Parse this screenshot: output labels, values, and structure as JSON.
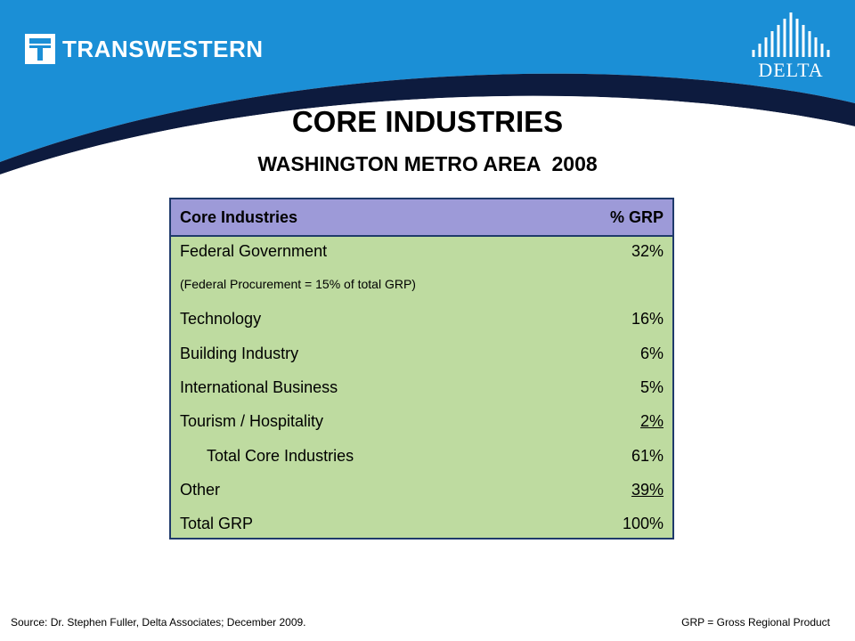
{
  "header": {
    "left_logo_text": "TRANSWESTERN",
    "right_logo_text": "DELTA",
    "colors": {
      "band": "#1b8fd6",
      "swoosh": "#0d1b3e"
    }
  },
  "slide": {
    "title": "CORE INDUSTRIES",
    "subtitle": "WASHINGTON METRO AREA",
    "year": "2008"
  },
  "table": {
    "columns": [
      "Core Industries",
      "% GRP"
    ],
    "rows": [
      {
        "label": "Federal Government",
        "value": "32%"
      },
      {
        "label": "(Federal Procurement  = 15% of total GRP)",
        "value": ""
      },
      {
        "label": "Technology",
        "value": "16%"
      },
      {
        "label": "Building Industry",
        "value": "6%"
      },
      {
        "label": "International Business",
        "value": "5%"
      },
      {
        "label": "Tourism / Hospitality",
        "value": "2%"
      },
      {
        "label": "Total Core Industries",
        "value": "61%"
      },
      {
        "label": "Other",
        "value": "39%"
      },
      {
        "label": "Total GRP",
        "value": "100%"
      }
    ],
    "colors": {
      "header_bg": "#9d9ad8",
      "body_bg": "#bedba0",
      "border": "#1f3a6b"
    }
  },
  "footer": {
    "source": "Source: Dr. Stephen Fuller, Delta Associates; December 2009.",
    "note": "GRP = Gross Regional Product"
  }
}
